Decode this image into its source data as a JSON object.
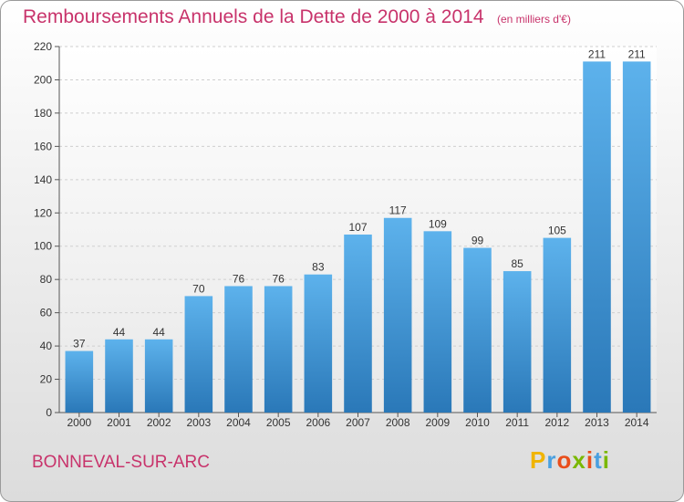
{
  "chart_data": {
    "type": "bar",
    "title": "Remboursements Annuels de la Dette de 2000 à 2014",
    "subtitle": "(en milliers d'€)",
    "categories": [
      "2000",
      "2001",
      "2002",
      "2003",
      "2004",
      "2005",
      "2006",
      "2007",
      "2008",
      "2009",
      "2010",
      "2011",
      "2012",
      "2013",
      "2014"
    ],
    "values": [
      37,
      44,
      44,
      70,
      76,
      76,
      83,
      107,
      117,
      109,
      99,
      85,
      105,
      211,
      211
    ],
    "ylim": [
      0,
      220
    ],
    "yticks": [
      0,
      20,
      40,
      60,
      80,
      100,
      120,
      140,
      160,
      180,
      200,
      220
    ],
    "xlabel": "",
    "ylabel": "",
    "grid": true,
    "bar_color": "#4aa0e0"
  },
  "town": "BONNEVAL-SUR-ARC",
  "logo": {
    "letters": [
      "P",
      "r",
      "o",
      "x",
      "i",
      "t",
      "i"
    ],
    "colors": [
      "#f0b400",
      "#4aa0e0",
      "#e94e1b",
      "#7ab800",
      "#e94e1b",
      "#4aa0e0",
      "#7ab800"
    ]
  }
}
